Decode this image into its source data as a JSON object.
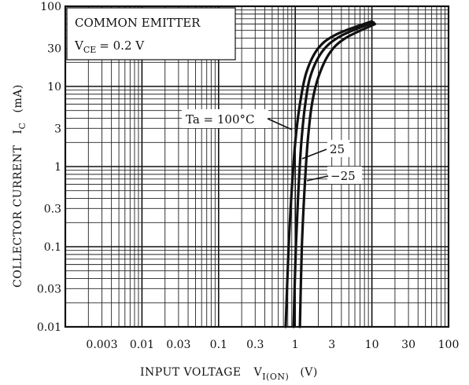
{
  "chart_data": {
    "type": "line",
    "xscale": "log",
    "yscale": "log",
    "xlim": [
      0.001,
      100
    ],
    "ylim": [
      0.01,
      100
    ],
    "x_ticks": [
      "0.003",
      "0.01",
      "0.03",
      "0.1",
      "0.3",
      "1",
      "3",
      "10",
      "30",
      "100"
    ],
    "x_tick_values": [
      0.003,
      0.01,
      0.03,
      0.1,
      0.3,
      1,
      3,
      10,
      30,
      100
    ],
    "y_ticks": [
      "100",
      "30",
      "10",
      "3",
      "1",
      "0.3",
      "0.1",
      "0.03",
      "0.01"
    ],
    "y_tick_values": [
      100,
      30,
      10,
      3,
      1,
      0.3,
      0.1,
      0.03,
      0.01
    ],
    "xlabel": "INPUT VOLTAGE",
    "xlabel_symbol": "V",
    "xlabel_sub": "I(ON)",
    "xlabel_unit": "(V)",
    "ylabel": "COLLECTOR CURRENT",
    "ylabel_symbol": "I",
    "ylabel_sub": "C",
    "ylabel_unit": "(mA)",
    "condition_title": "COMMON EMITTER",
    "condition_symbol": "V",
    "condition_sub": "CE",
    "condition_value": "= 0.2 V",
    "grid": true,
    "series": [
      {
        "name": "Ta = 100°C",
        "x": [
          0.75,
          0.82,
          0.9,
          1.0,
          1.15,
          1.4,
          2.0,
          3.5,
          10
        ],
        "y": [
          0.01,
          0.1,
          0.5,
          2,
          6,
          15,
          30,
          45,
          65
        ]
      },
      {
        "name": "25",
        "x": [
          0.95,
          1.02,
          1.1,
          1.2,
          1.35,
          1.6,
          2.3,
          4.0,
          10.5
        ],
        "y": [
          0.01,
          0.1,
          0.5,
          2,
          6,
          14,
          28,
          43,
          63
        ]
      },
      {
        "name": "−25",
        "x": [
          1.15,
          1.22,
          1.32,
          1.45,
          1.65,
          2.0,
          2.8,
          4.5,
          11
        ],
        "y": [
          0.01,
          0.1,
          0.5,
          2,
          6,
          13,
          26,
          40,
          60
        ]
      }
    ]
  }
}
